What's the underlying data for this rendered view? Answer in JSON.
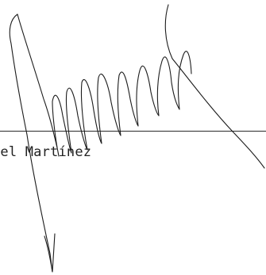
{
  "signature_block": {
    "signatory_name": "uel Martínez"
  }
}
